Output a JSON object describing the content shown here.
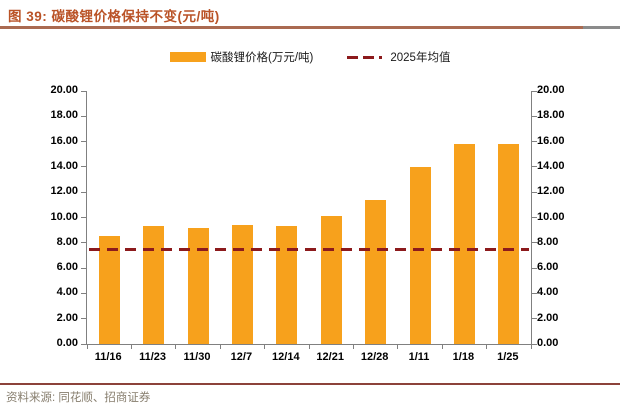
{
  "title": "图 39: 碳酸锂价格保持不变(元/吨)",
  "legend": [
    {
      "label": "碳酸锂价格(万元/吨)",
      "type": "bar-swatch",
      "color": "#F7A11C"
    },
    {
      "label": "2025年均值",
      "type": "dashed-line-swatch",
      "color": "#8C1A1C"
    }
  ],
  "footer": {
    "source": "资料来源: 同花顺、招商证券"
  },
  "colors": {
    "bar": "#F7A11C",
    "average_line": "#8C1A1C",
    "title": "#BA5327",
    "axis": "#808080"
  },
  "chart_data": {
    "type": "bar",
    "title": "图 39: 碳酸锂价格保持不变(元/吨)",
    "categories": [
      "11/16",
      "11/23",
      "11/30",
      "12/7",
      "12/14",
      "12/21",
      "12/28",
      "1/11",
      "1/18",
      "1/25"
    ],
    "series": [
      {
        "name": "碳酸锂价格(万元/吨)",
        "type": "bar",
        "color": "#F7A11C",
        "values": [
          8.55,
          9.35,
          9.2,
          9.4,
          9.3,
          10.1,
          11.4,
          14.0,
          15.8,
          15.8
        ]
      },
      {
        "name": "2025年均值",
        "type": "dashed-line",
        "color": "#8C1A1C",
        "value": 7.5
      }
    ],
    "ylim": [
      0,
      20
    ],
    "ytick_step": 2,
    "ytick_format_decimals": 2,
    "dual_y_axis": true,
    "grid": false,
    "legend_position": "top"
  }
}
